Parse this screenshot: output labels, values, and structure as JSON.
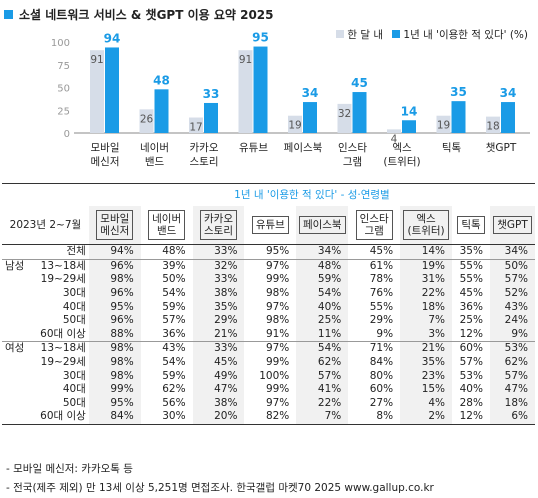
{
  "title": "소셜 네트워크 서비스 & 챗GPT 이용 요약 2025",
  "legend": {
    "items": [
      {
        "label": "한 달 내",
        "color": "#d6dde8"
      },
      {
        "label": "1년 내 '이용한 적 있다' (%)",
        "color": "#1a9be6"
      }
    ]
  },
  "chart_data": {
    "type": "bar",
    "categories": [
      [
        "모바일",
        "메신저"
      ],
      [
        "네이버",
        "밴드"
      ],
      [
        "카카오",
        "스토리"
      ],
      [
        "유튜브"
      ],
      [
        "페이스북"
      ],
      [
        "인스타",
        "그램"
      ],
      [
        "엑스",
        "(트위터)"
      ],
      [
        "틱톡"
      ],
      [
        "챗GPT"
      ]
    ],
    "series": [
      {
        "name": "한 달 내",
        "values": [
          91,
          26,
          17,
          91,
          19,
          32,
          4,
          19,
          18
        ],
        "color": "#d6dde8"
      },
      {
        "name": "1년 내 '이용한 적 있다' (%)",
        "values": [
          94,
          48,
          33,
          95,
          34,
          45,
          14,
          35,
          34
        ],
        "color": "#1a9be6"
      }
    ],
    "yticks": [
      0,
      25,
      50,
      75,
      100
    ],
    "ylim": [
      0,
      100
    ]
  },
  "table": {
    "header_title": "1년 내 '이용한 적 있다' - 성·연령별",
    "period": "2023년 2~7월",
    "columns": [
      [
        "모바일",
        "메신저"
      ],
      [
        "네이버",
        "밴드"
      ],
      [
        "카카오",
        "스토리"
      ],
      [
        "유튜브"
      ],
      [
        "페이스북"
      ],
      [
        "인스타",
        "그램"
      ],
      [
        "엑스",
        "(트위터)"
      ],
      [
        "틱톡"
      ],
      [
        "챗GPT"
      ]
    ],
    "rows": [
      {
        "group": "",
        "label": "전체",
        "values": [
          "94%",
          "48%",
          "33%",
          "95%",
          "34%",
          "45%",
          "14%",
          "35%",
          "34%"
        ]
      },
      {
        "group": "남성",
        "label": "13~18세",
        "values": [
          "96%",
          "39%",
          "32%",
          "97%",
          "48%",
          "61%",
          "19%",
          "55%",
          "50%"
        ]
      },
      {
        "group": "",
        "label": "19~29세",
        "values": [
          "98%",
          "50%",
          "33%",
          "99%",
          "59%",
          "78%",
          "31%",
          "55%",
          "57%"
        ]
      },
      {
        "group": "",
        "label": "30대",
        "values": [
          "96%",
          "54%",
          "38%",
          "98%",
          "54%",
          "76%",
          "22%",
          "45%",
          "52%"
        ]
      },
      {
        "group": "",
        "label": "40대",
        "values": [
          "95%",
          "59%",
          "35%",
          "97%",
          "40%",
          "55%",
          "18%",
          "36%",
          "43%"
        ]
      },
      {
        "group": "",
        "label": "50대",
        "values": [
          "96%",
          "57%",
          "29%",
          "98%",
          "25%",
          "29%",
          "7%",
          "25%",
          "24%"
        ]
      },
      {
        "group": "",
        "label": "60대 이상",
        "values": [
          "88%",
          "36%",
          "21%",
          "91%",
          "11%",
          "9%",
          "3%",
          "12%",
          "9%"
        ]
      },
      {
        "group": "여성",
        "label": "13~18세",
        "values": [
          "98%",
          "43%",
          "33%",
          "97%",
          "54%",
          "71%",
          "21%",
          "60%",
          "53%"
        ]
      },
      {
        "group": "",
        "label": "19~29세",
        "values": [
          "98%",
          "54%",
          "45%",
          "99%",
          "62%",
          "84%",
          "35%",
          "57%",
          "62%"
        ]
      },
      {
        "group": "",
        "label": "30대",
        "values": [
          "98%",
          "59%",
          "49%",
          "100%",
          "57%",
          "80%",
          "23%",
          "53%",
          "57%"
        ]
      },
      {
        "group": "",
        "label": "40대",
        "values": [
          "99%",
          "62%",
          "47%",
          "99%",
          "41%",
          "60%",
          "15%",
          "40%",
          "47%"
        ]
      },
      {
        "group": "",
        "label": "50대",
        "values": [
          "95%",
          "56%",
          "38%",
          "97%",
          "22%",
          "27%",
          "4%",
          "28%",
          "18%"
        ]
      },
      {
        "group": "",
        "label": "60대 이상",
        "values": [
          "84%",
          "30%",
          "20%",
          "82%",
          "7%",
          "8%",
          "2%",
          "12%",
          "6%"
        ]
      }
    ]
  },
  "notes": [
    "- 모바일 메신저: 카카오톡 등",
    "- 전국(제주 제외) 만 13세 이상 5,251명 면접조사. 한국갤럽 마켓70 2025 www.gallup.co.kr"
  ]
}
